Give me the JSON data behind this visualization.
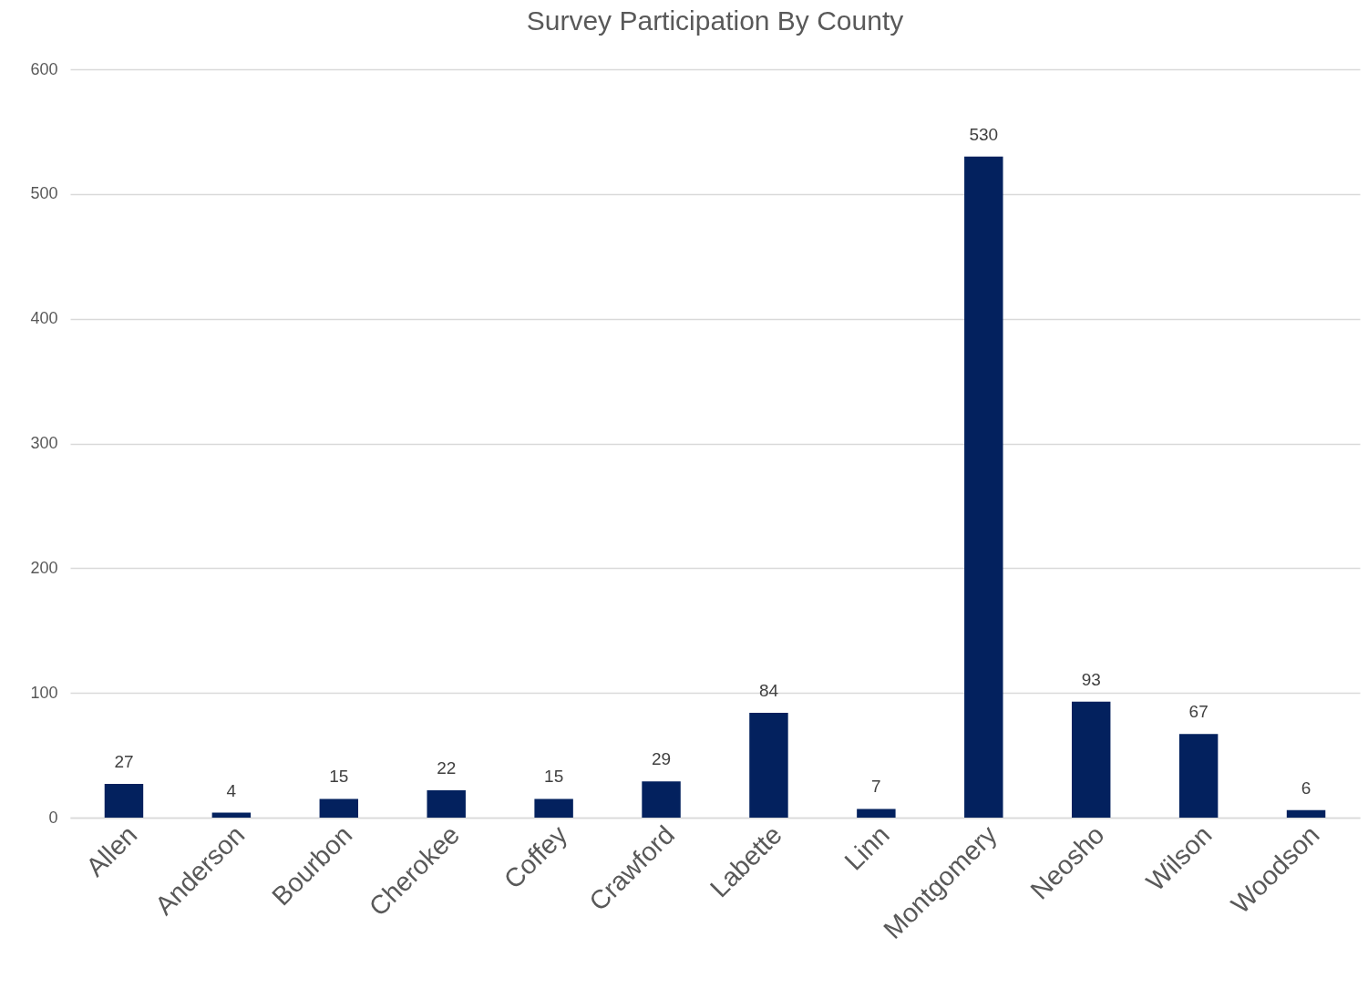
{
  "chart_data": {
    "type": "bar",
    "title": "Survey Participation By County",
    "categories": [
      "Allen",
      "Anderson",
      "Bourbon",
      "Cherokee",
      "Coffey",
      "Crawford",
      "Labette",
      "Linn",
      "Montgomery",
      "Neosho",
      "Wilson",
      "Woodson"
    ],
    "values": [
      27,
      4,
      15,
      22,
      15,
      29,
      84,
      7,
      530,
      93,
      67,
      6
    ],
    "color": "#03215e",
    "ylim": [
      0,
      600
    ],
    "yticks": [
      0,
      100,
      200,
      300,
      400,
      500,
      600
    ],
    "grid": "y",
    "data_labels": true
  }
}
